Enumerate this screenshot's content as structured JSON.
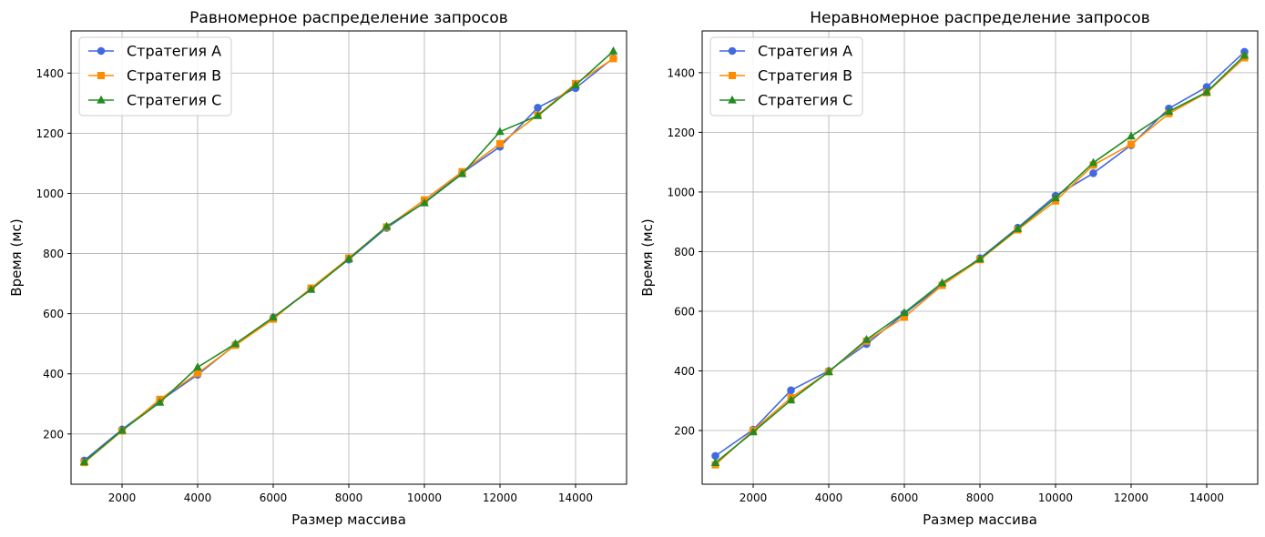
{
  "chart_data": [
    {
      "type": "line",
      "title": "Равномерное распределение запросов",
      "xlabel": "Размер массива",
      "ylabel": "Время (мс)",
      "xlim": [
        650,
        15350
      ],
      "ylim": [
        33,
        1540
      ],
      "xticks": [
        2000,
        4000,
        6000,
        8000,
        10000,
        12000,
        14000
      ],
      "yticks": [
        200,
        400,
        600,
        800,
        1000,
        1200,
        1400
      ],
      "grid": true,
      "legend_position": "top-left",
      "x": [
        1000,
        2000,
        3000,
        4000,
        5000,
        6000,
        7000,
        8000,
        9000,
        10000,
        11000,
        12000,
        13000,
        14000,
        15000
      ],
      "series": [
        {
          "name": "Стратегия A",
          "color": "#4169e1",
          "marker": "circle",
          "values": [
            112,
            215,
            310,
            397,
            497,
            587,
            683,
            780,
            885,
            970,
            1068,
            1155,
            1285,
            1350,
            1450
          ]
        },
        {
          "name": "Стратегия B",
          "color": "#ff8c00",
          "marker": "square",
          "values": [
            105,
            210,
            315,
            402,
            495,
            582,
            685,
            785,
            888,
            978,
            1072,
            1165,
            1260,
            1365,
            1448
          ]
        },
        {
          "name": "Стратегия C",
          "color": "#228b22",
          "marker": "triangle",
          "values": [
            107,
            212,
            305,
            422,
            500,
            588,
            680,
            782,
            890,
            968,
            1065,
            1205,
            1258,
            1360,
            1473
          ]
        }
      ]
    },
    {
      "type": "line",
      "title": "Неравномерное распределение запросов",
      "xlabel": "Размер массива",
      "ylabel": "Время (мс)",
      "xlim": [
        650,
        15350
      ],
      "ylim": [
        20,
        1540
      ],
      "xticks": [
        2000,
        4000,
        6000,
        8000,
        10000,
        12000,
        14000
      ],
      "yticks": [
        200,
        400,
        600,
        800,
        1000,
        1200,
        1400
      ],
      "grid": true,
      "legend_position": "top-left",
      "x": [
        1000,
        2000,
        3000,
        4000,
        5000,
        6000,
        7000,
        8000,
        9000,
        10000,
        11000,
        12000,
        13000,
        14000,
        15000
      ],
      "series": [
        {
          "name": "Стратегия A",
          "color": "#4169e1",
          "marker": "circle",
          "values": [
            115,
            203,
            335,
            400,
            490,
            592,
            688,
            778,
            880,
            987,
            1063,
            1157,
            1280,
            1352,
            1470
          ]
        },
        {
          "name": "Стратегия B",
          "color": "#ff8c00",
          "marker": "square",
          "values": [
            85,
            200,
            310,
            397,
            500,
            580,
            687,
            773,
            873,
            970,
            1090,
            1160,
            1263,
            1333,
            1450
          ]
        },
        {
          "name": "Стратегия C",
          "color": "#228b22",
          "marker": "triangle",
          "values": [
            92,
            195,
            302,
            397,
            505,
            595,
            695,
            775,
            877,
            980,
            1098,
            1187,
            1270,
            1335,
            1458
          ]
        }
      ]
    }
  ]
}
